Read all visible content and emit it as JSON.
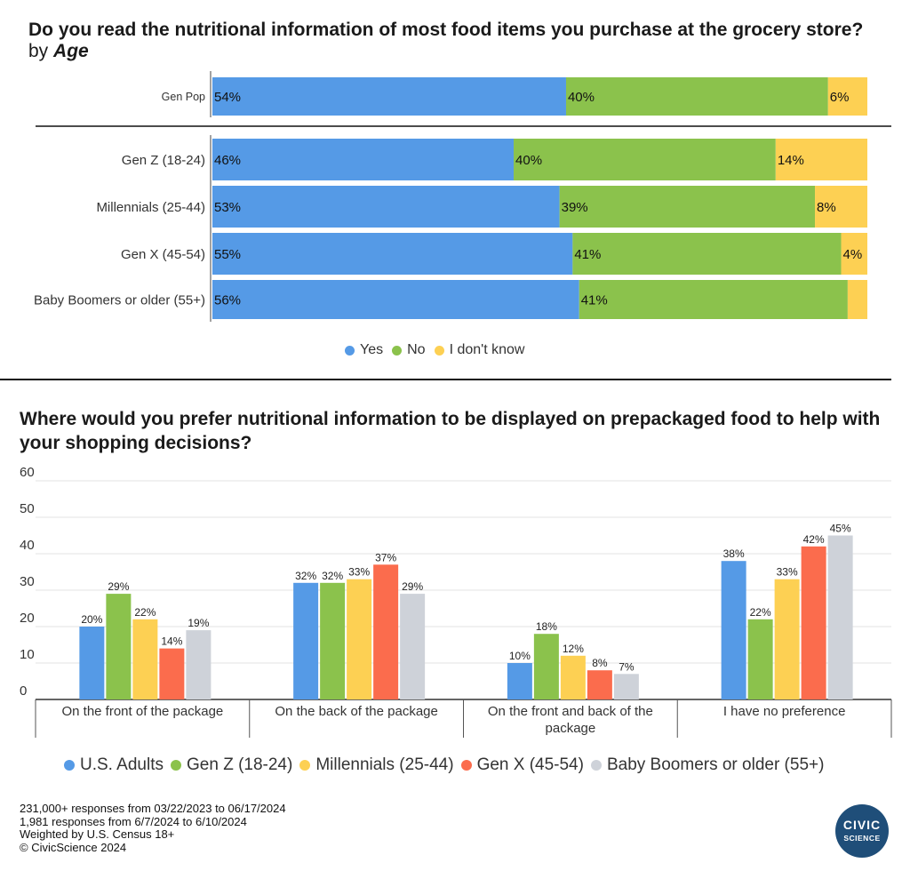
{
  "title1": {
    "main": "Do you read the nutritional information of most food items you purchase at the grocery store?",
    "by": "by",
    "facet": "Age"
  },
  "chart_data": [
    {
      "type": "bar",
      "orientation": "horizontal-stacked",
      "title": "Do you read the nutritional information of most food items you purchase at the grocery store? by Age",
      "categories": [
        "Gen Pop",
        "Gen Z (18-24)",
        "Millennials (25-44)",
        "Gen X (45-54)",
        "Baby Boomers or older (55+)"
      ],
      "series": [
        {
          "name": "Yes",
          "color": "#559ae6",
          "values": [
            54,
            46,
            53,
            55,
            56
          ],
          "labels": [
            "54%",
            "46%",
            "53%",
            "55%",
            "56%"
          ]
        },
        {
          "name": "No",
          "color": "#8bc24c",
          "values": [
            40,
            40,
            39,
            41,
            41
          ],
          "labels": [
            "40%",
            "40%",
            "39%",
            "41%",
            "41%"
          ]
        },
        {
          "name": "I don't know",
          "color": "#fdd053",
          "values": [
            6,
            14,
            8,
            4,
            3
          ],
          "labels": [
            "6%",
            "14%",
            "8%",
            "4%",
            ""
          ]
        }
      ],
      "xlim": [
        0,
        100
      ],
      "legend_position": "bottom"
    },
    {
      "type": "bar",
      "orientation": "vertical-grouped",
      "title": "Where would you prefer nutritional information to be displayed on prepackaged food to help with your shopping decisions?",
      "categories": [
        "On the front of the package",
        "On the back of the package",
        "On the front and back of the package",
        "I have no preference"
      ],
      "series": [
        {
          "name": "U.S. Adults",
          "color": "#559ae6",
          "values": [
            20,
            32,
            10,
            38
          ]
        },
        {
          "name": "Gen Z (18-24)",
          "color": "#8bc24c",
          "values": [
            29,
            32,
            18,
            22
          ]
        },
        {
          "name": "Millennials (25-44)",
          "color": "#fdd053",
          "values": [
            22,
            33,
            12,
            33
          ]
        },
        {
          "name": "Gen X (45-54)",
          "color": "#fb6c4d",
          "values": [
            14,
            37,
            8,
            42
          ]
        },
        {
          "name": "Baby Boomers or older (55+)",
          "color": "#ced2d9",
          "values": [
            19,
            29,
            7,
            45
          ]
        }
      ],
      "ylim": [
        0,
        60
      ],
      "yticks": [
        "0",
        "10",
        "20",
        "30",
        "40",
        "50",
        "60"
      ],
      "grid": true,
      "legend_position": "bottom"
    }
  ],
  "footer": [
    "231,000+ responses from 03/22/2023 to 06/17/2024",
    "1,981 responses from 6/7/2024 to 6/10/2024",
    "Weighted by U.S. Census 18+",
    "© CivicScience 2024"
  ],
  "logo": {
    "line1": "CIVIC",
    "line2": "SCIENCE"
  }
}
